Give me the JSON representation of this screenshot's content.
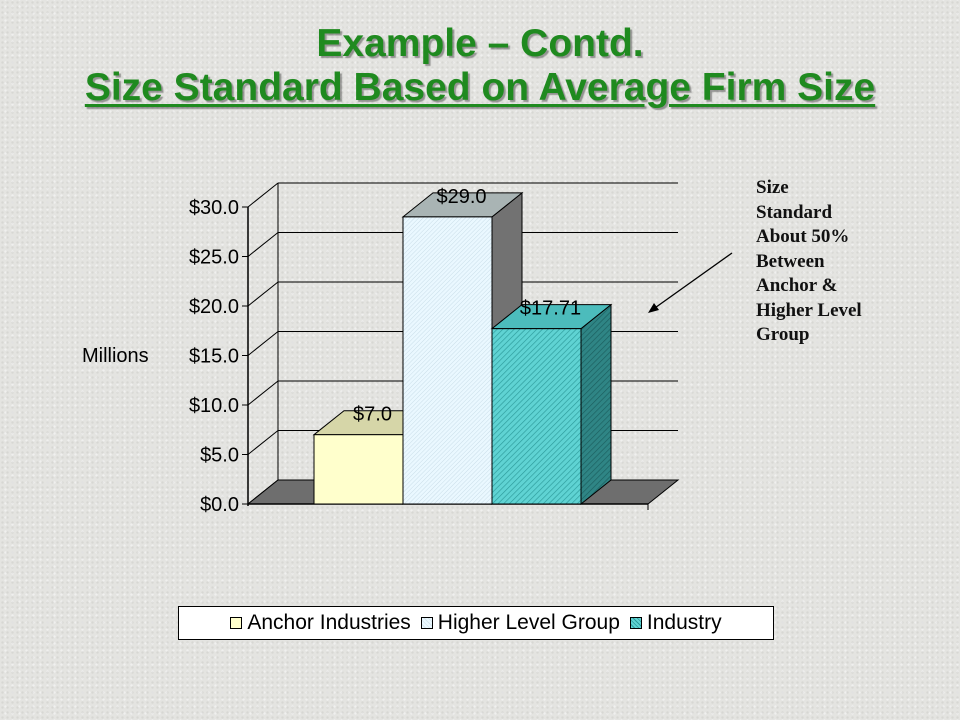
{
  "slide": {
    "title_line1": "Example – Contd.",
    "title_line2": "Size Standard Based on Average Firm Size",
    "annotation": "Size\nStandard\nAbout 50%\nBetween\nAnchor &\nHigher Level\nGroup",
    "title_color": "#1f8a1f"
  },
  "chart_data": {
    "type": "bar",
    "title": "",
    "ylabel": "Millions",
    "ylim": [
      0,
      30
    ],
    "yticks": [
      0,
      5,
      10,
      15,
      20,
      25,
      30
    ],
    "ytick_labels": [
      "$0.0",
      "$5.0",
      "$10.0",
      "$15.0",
      "$20.0",
      "$25.0",
      "$30.0"
    ],
    "grid": true,
    "three_d": true,
    "legend_position": "bottom",
    "series": [
      {
        "name": "Anchor Industries",
        "value": 7.0,
        "label": "$7.0",
        "color": "#ffffcc",
        "pattern": "none"
      },
      {
        "name": "Higher Level Group",
        "value": 29.0,
        "label": "$29.0",
        "color": "#eaf8ff",
        "pattern": "fine-diagonal"
      },
      {
        "name": "Industry",
        "value": 17.71,
        "label": "$17.71",
        "color": "#5fd3d3",
        "pattern": "diagonal-hatch"
      }
    ]
  }
}
